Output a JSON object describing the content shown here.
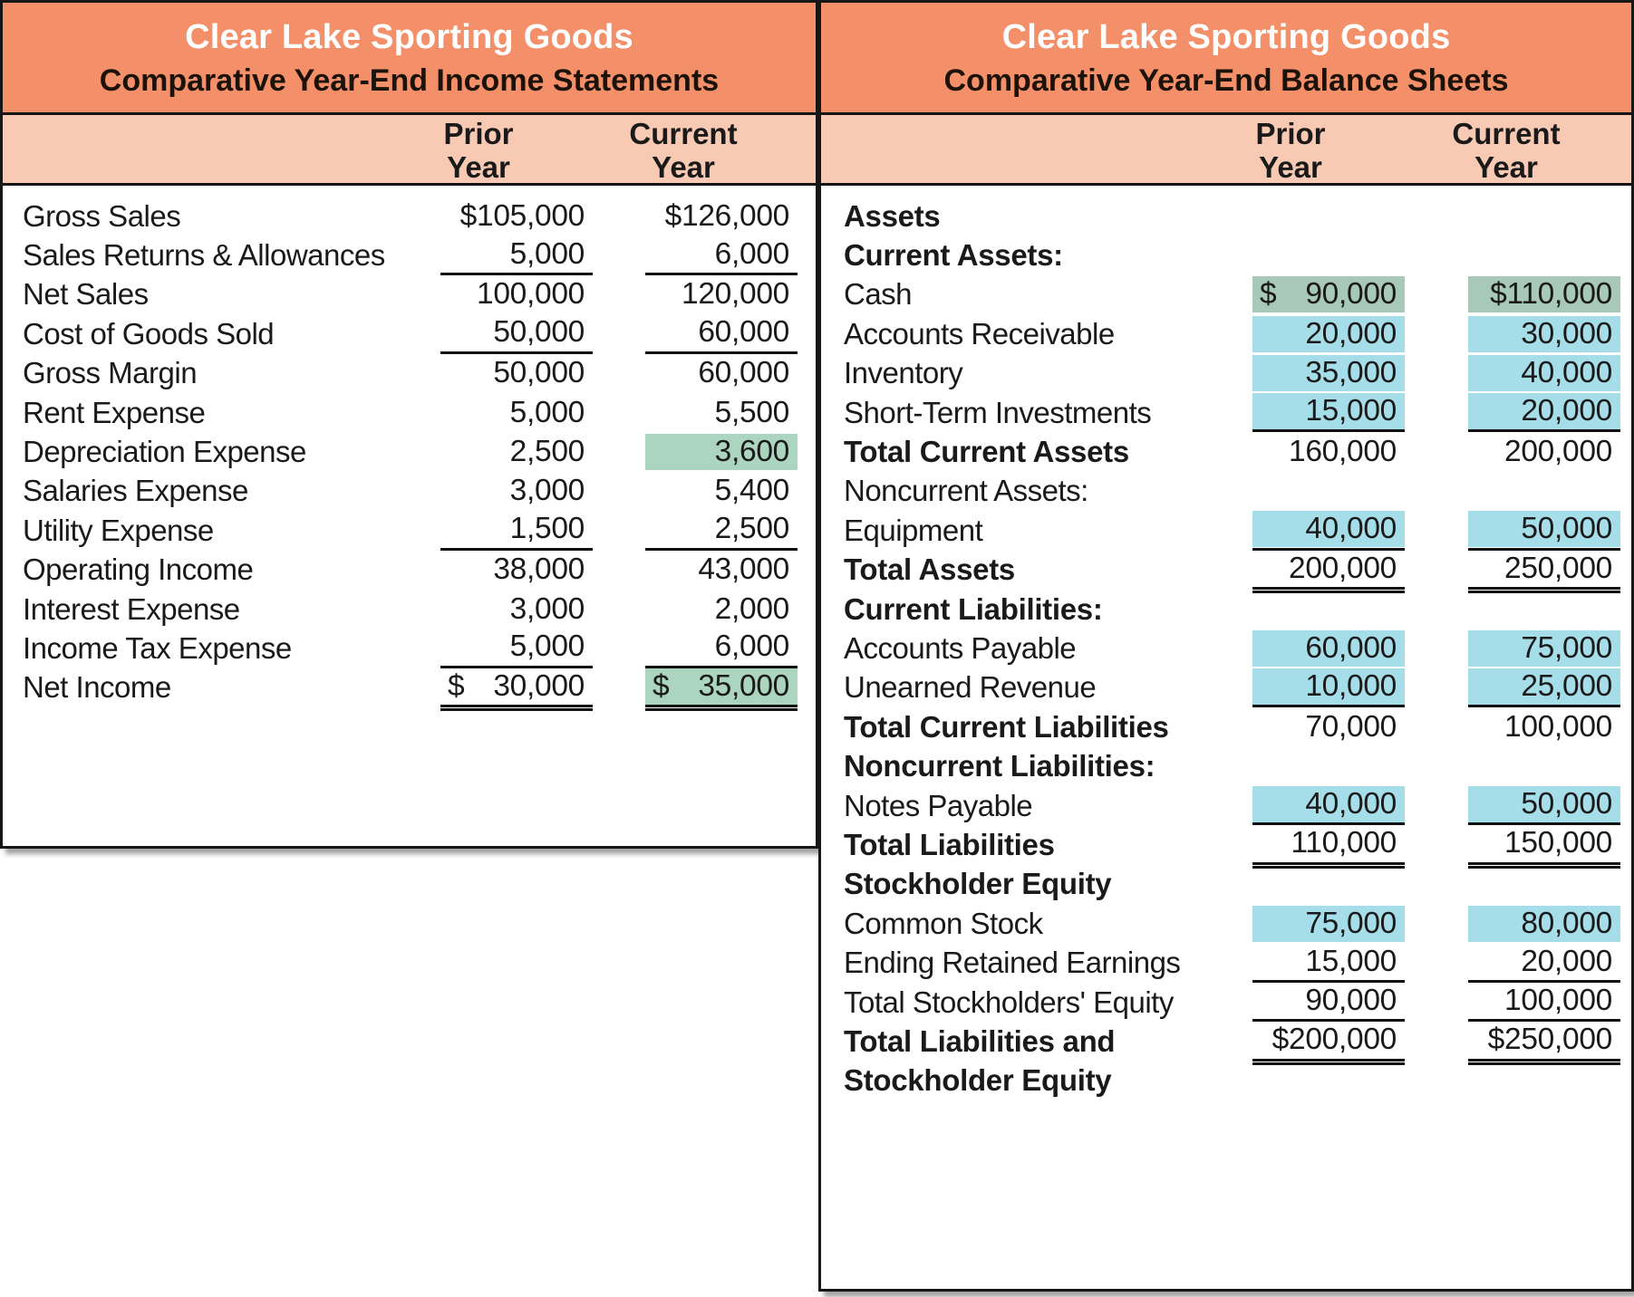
{
  "colors": {
    "header_orange": "#F3906A",
    "subheader_peach": "#F8C9B3",
    "highlight_green": "#ABD5BF",
    "highlight_green_cash": "#A8C8B9",
    "highlight_blue": "#A5DEE9",
    "title_text": "#FFFFFF",
    "body_text": "#1A1A1A"
  },
  "income_statement": {
    "title": "Clear Lake Sporting Goods",
    "subtitle": "Comparative Year-End Income Statements",
    "col1_header": [
      "Prior",
      "Year"
    ],
    "col2_header": [
      "Current",
      "Year"
    ],
    "rows": [
      {
        "label": "Gross Sales",
        "prior": {
          "pre": "",
          "num": "$105,000"
        },
        "current": {
          "pre": "",
          "num": "$126,000"
        }
      },
      {
        "label": "Sales Returns & Allowances",
        "prior": {
          "pre": "",
          "num": "5,000"
        },
        "current": {
          "pre": "",
          "num": "6,000"
        },
        "underline": "single"
      },
      {
        "label": "Net Sales",
        "prior": {
          "pre": "",
          "num": "100,000"
        },
        "current": {
          "pre": "",
          "num": "120,000"
        }
      },
      {
        "label": "Cost of Goods Sold",
        "prior": {
          "pre": "",
          "num": "50,000"
        },
        "current": {
          "pre": "",
          "num": "60,000"
        },
        "underline": "single"
      },
      {
        "label": "Gross Margin",
        "prior": {
          "pre": "",
          "num": "50,000"
        },
        "current": {
          "pre": "",
          "num": "60,000"
        }
      },
      {
        "label": "Rent Expense",
        "prior": {
          "pre": "",
          "num": "5,000"
        },
        "current": {
          "pre": "",
          "num": "5,500"
        }
      },
      {
        "label": "Depreciation Expense",
        "prior": {
          "pre": "",
          "num": "2,500"
        },
        "current": {
          "pre": "",
          "num": "3,600"
        },
        "current_hl": "green"
      },
      {
        "label": "Salaries Expense",
        "prior": {
          "pre": "",
          "num": "3,000"
        },
        "current": {
          "pre": "",
          "num": "5,400"
        }
      },
      {
        "label": "Utility Expense",
        "prior": {
          "pre": "",
          "num": "1,500"
        },
        "current": {
          "pre": "",
          "num": "2,500"
        },
        "underline": "single"
      },
      {
        "label": "Operating Income",
        "prior": {
          "pre": "",
          "num": "38,000"
        },
        "current": {
          "pre": "",
          "num": "43,000"
        }
      },
      {
        "label": "Interest Expense",
        "prior": {
          "pre": "",
          "num": "3,000"
        },
        "current": {
          "pre": "",
          "num": "2,000"
        }
      },
      {
        "label": "Income Tax Expense",
        "prior": {
          "pre": "",
          "num": "5,000"
        },
        "current": {
          "pre": "",
          "num": "6,000"
        },
        "underline": "single"
      },
      {
        "label": "Net Income",
        "prior": {
          "pre": "$",
          "num": "30,000"
        },
        "current": {
          "pre": "$",
          "num": "35,000"
        },
        "current_hl": "green",
        "underline": "double"
      }
    ]
  },
  "balance_sheet": {
    "title": "Clear Lake Sporting Goods",
    "subtitle": "Comparative Year-End Balance Sheets",
    "col1_header": [
      "Prior",
      "Year"
    ],
    "col2_header": [
      "Current",
      "Year"
    ],
    "rows": [
      {
        "label": "Assets",
        "bold": true
      },
      {
        "label": "Current Assets:",
        "bold": true
      },
      {
        "label": "Cash",
        "prior": {
          "pre": "$",
          "num": "90,000"
        },
        "current": {
          "pre": "",
          "num": "$110,000"
        },
        "prior_hl": "green2",
        "current_hl": "green2"
      },
      {
        "label": "Accounts Receivable",
        "prior": {
          "pre": "",
          "num": "20,000"
        },
        "current": {
          "pre": "",
          "num": "30,000"
        },
        "prior_hl": "blue",
        "current_hl": "blue"
      },
      {
        "label": "Inventory",
        "prior": {
          "pre": "",
          "num": "35,000"
        },
        "current": {
          "pre": "",
          "num": "40,000"
        },
        "prior_hl": "blue",
        "current_hl": "blue"
      },
      {
        "label": "Short-Term Investments",
        "prior": {
          "pre": "",
          "num": "15,000"
        },
        "current": {
          "pre": "",
          "num": "20,000"
        },
        "prior_hl": "blue",
        "current_hl": "blue",
        "underline": "single"
      },
      {
        "label": "Total Current Assets",
        "bold": true,
        "prior": {
          "pre": "",
          "num": "160,000"
        },
        "current": {
          "pre": "",
          "num": "200,000"
        }
      },
      {
        "label": "Noncurrent Assets:"
      },
      {
        "label": "Equipment",
        "prior": {
          "pre": "",
          "num": "40,000"
        },
        "current": {
          "pre": "",
          "num": "50,000"
        },
        "prior_hl": "blue",
        "current_hl": "blue",
        "underline": "single"
      },
      {
        "label": "Total Assets",
        "bold": true,
        "prior": {
          "pre": "",
          "num": "200,000"
        },
        "current": {
          "pre": "",
          "num": "250,000"
        },
        "underline": "double"
      },
      {
        "label": "Current Liabilities:",
        "bold": true
      },
      {
        "label": "Accounts Payable",
        "prior": {
          "pre": "",
          "num": "60,000"
        },
        "current": {
          "pre": "",
          "num": "75,000"
        },
        "prior_hl": "blue",
        "current_hl": "blue"
      },
      {
        "label": "Unearned Revenue",
        "prior": {
          "pre": "",
          "num": "10,000"
        },
        "current": {
          "pre": "",
          "num": "25,000"
        },
        "prior_hl": "blue",
        "current_hl": "blue",
        "underline": "single"
      },
      {
        "label": "Total Current Liabilities",
        "bold": true,
        "prior": {
          "pre": "",
          "num": "70,000"
        },
        "current": {
          "pre": "",
          "num": "100,000"
        }
      },
      {
        "label": "Noncurrent Liabilities:",
        "bold": true
      },
      {
        "label": "Notes Payable",
        "prior": {
          "pre": "",
          "num": "40,000"
        },
        "current": {
          "pre": "",
          "num": "50,000"
        },
        "prior_hl": "blue",
        "current_hl": "blue",
        "underline": "single"
      },
      {
        "label": "Total Liabilities",
        "bold": true,
        "prior": {
          "pre": "",
          "num": "110,000"
        },
        "current": {
          "pre": "",
          "num": "150,000"
        },
        "underline": "double"
      },
      {
        "label": "Stockholder Equity",
        "bold": true
      },
      {
        "label": "Common Stock",
        "prior": {
          "pre": "",
          "num": "75,000"
        },
        "current": {
          "pre": "",
          "num": "80,000"
        },
        "prior_hl": "blue",
        "current_hl": "blue"
      },
      {
        "label": "Ending Retained Earnings",
        "prior": {
          "pre": "",
          "num": "15,000"
        },
        "current": {
          "pre": "",
          "num": "20,000"
        },
        "underline": "single"
      },
      {
        "label": "Total Stockholders' Equity",
        "prior": {
          "pre": "",
          "num": "90,000"
        },
        "current": {
          "pre": "",
          "num": "100,000"
        },
        "underline": "single"
      },
      {
        "label": "Total Liabilities and",
        "bold": true,
        "prior": {
          "pre": "",
          "num": "$200,000"
        },
        "current": {
          "pre": "",
          "num": "$250,000"
        },
        "underline": "double"
      },
      {
        "label": "Stockholder Equity",
        "bold": true
      }
    ]
  }
}
